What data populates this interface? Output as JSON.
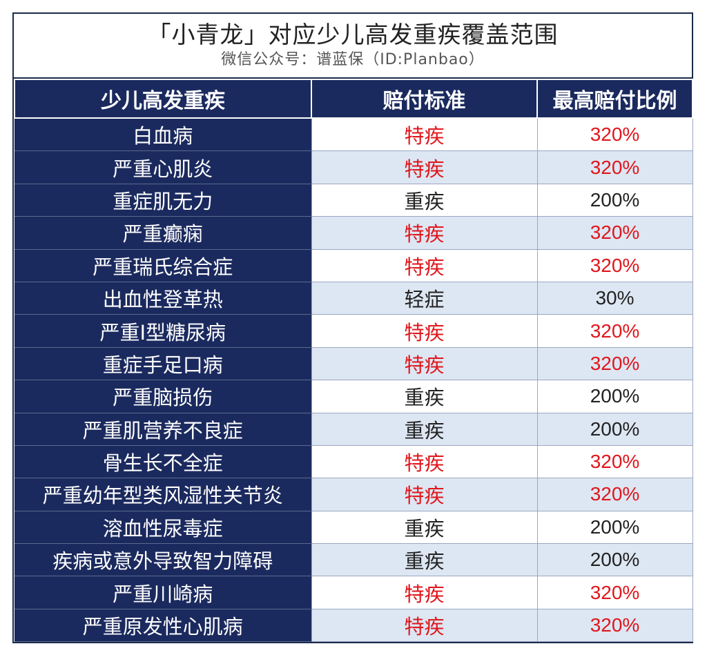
{
  "header": {
    "title": "「小青龙」对应少儿高发重疾覆盖范围",
    "subtitle": "微信公众号：谱蓝保（ID:Planbao）"
  },
  "table": {
    "columns": [
      "少儿高发重疾",
      "赔付标准",
      "最高赔付比例"
    ],
    "rows": [
      {
        "disease": "白血病",
        "standard": "特疾",
        "ratio": "320%",
        "highlight": true
      },
      {
        "disease": "严重心肌炎",
        "standard": "特疾",
        "ratio": "320%",
        "highlight": true
      },
      {
        "disease": "重症肌无力",
        "standard": "重疾",
        "ratio": "200%",
        "highlight": false
      },
      {
        "disease": "严重癫痫",
        "standard": "特疾",
        "ratio": "320%",
        "highlight": true
      },
      {
        "disease": "严重瑞氏综合症",
        "standard": "特疾",
        "ratio": "320%",
        "highlight": true
      },
      {
        "disease": "出血性登革热",
        "standard": "轻症",
        "ratio": "30%",
        "highlight": false
      },
      {
        "disease": "严重I型糖尿病",
        "standard": "特疾",
        "ratio": "320%",
        "highlight": true
      },
      {
        "disease": "重症手足口病",
        "standard": "特疾",
        "ratio": "320%",
        "highlight": true
      },
      {
        "disease": "严重脑损伤",
        "standard": "重疾",
        "ratio": "200%",
        "highlight": false
      },
      {
        "disease": "严重肌营养不良症",
        "standard": "重疾",
        "ratio": "200%",
        "highlight": false
      },
      {
        "disease": "骨生长不全症",
        "standard": "特疾",
        "ratio": "320%",
        "highlight": true
      },
      {
        "disease": "严重幼年型类风湿性关节炎",
        "standard": "特疾",
        "ratio": "320%",
        "highlight": true
      },
      {
        "disease": "溶血性尿毒症",
        "standard": "重疾",
        "ratio": "200%",
        "highlight": false
      },
      {
        "disease": "疾病或意外导致智力障碍",
        "standard": "重疾",
        "ratio": "200%",
        "highlight": false
      },
      {
        "disease": "严重川崎病",
        "standard": "特疾",
        "ratio": "320%",
        "highlight": true
      },
      {
        "disease": "严重原发性心肌病",
        "standard": "特疾",
        "ratio": "320%",
        "highlight": true
      }
    ]
  },
  "colors": {
    "header_bg": "#1b2a5e",
    "highlight_text": "#e0161c",
    "normal_text": "#222222",
    "alt_row_bg": "#dde7f3"
  }
}
